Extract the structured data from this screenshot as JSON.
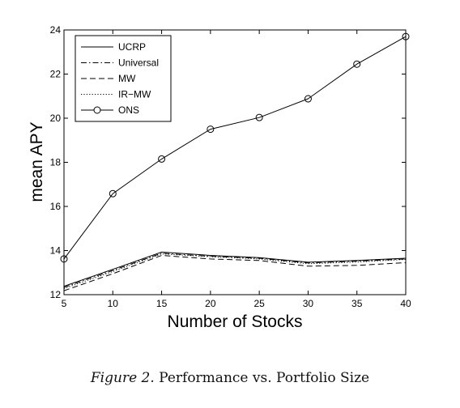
{
  "chart_data": {
    "type": "line",
    "xlabel": "Number of Stocks",
    "ylabel": "mean APY",
    "x": [
      5,
      10,
      15,
      20,
      25,
      30,
      35,
      40
    ],
    "xlim": [
      5,
      40
    ],
    "ylim": [
      12,
      24
    ],
    "xticks": [
      "5",
      "10",
      "15",
      "20",
      "25",
      "30",
      "35",
      "40"
    ],
    "yticks": [
      "12",
      "14",
      "16",
      "18",
      "20",
      "22",
      "24"
    ],
    "grid": false,
    "legend_position": "top-left",
    "series": [
      {
        "name": "UCRP",
        "style": "solid",
        "marker": "none",
        "values": [
          12.38,
          13.15,
          13.93,
          13.78,
          13.68,
          13.47,
          13.55,
          13.65
        ]
      },
      {
        "name": "Universal",
        "style": "dashdot",
        "marker": "none",
        "values": [
          12.33,
          13.1,
          13.88,
          13.74,
          13.65,
          13.44,
          13.52,
          13.62
        ]
      },
      {
        "name": "MW",
        "style": "dashed",
        "marker": "none",
        "values": [
          12.18,
          12.95,
          13.78,
          13.62,
          13.55,
          13.29,
          13.33,
          13.45
        ]
      },
      {
        "name": "IR−MW",
        "style": "dotted",
        "marker": "none",
        "values": [
          12.28,
          13.05,
          13.85,
          13.72,
          13.62,
          13.4,
          13.48,
          13.6
        ]
      },
      {
        "name": "ONS",
        "style": "solid",
        "marker": "circle",
        "values": [
          13.62,
          16.58,
          18.15,
          19.5,
          20.03,
          20.88,
          22.45,
          23.7
        ]
      }
    ]
  },
  "caption": {
    "label": "Figure 2.",
    "text": "Performance vs. Portfolio Size"
  }
}
